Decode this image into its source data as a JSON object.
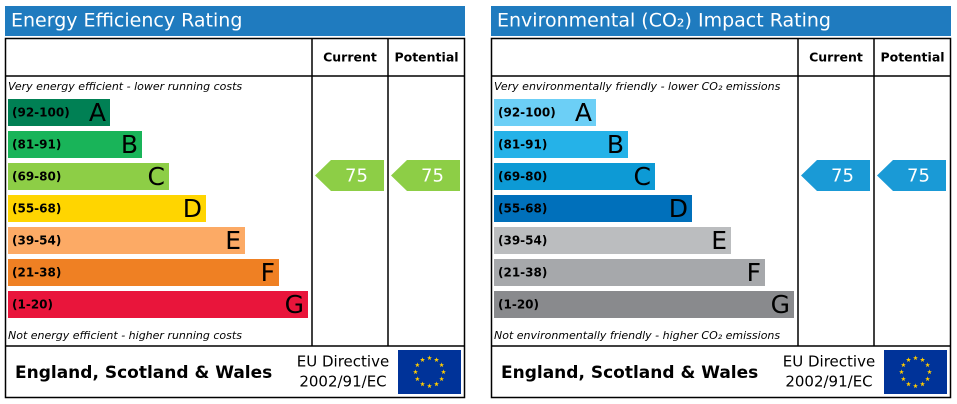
{
  "panels": [
    {
      "title": "Energy Efficiency Rating",
      "columns": [
        "Current",
        "Potential"
      ],
      "top_note": "Very energy efficient - lower running costs",
      "bottom_note": "Not energy efficient - higher running costs",
      "bands": [
        {
          "range": "(92-100)",
          "letter": "A",
          "color": "#008054"
        },
        {
          "range": "(81-91)",
          "letter": "B",
          "color": "#19b459"
        },
        {
          "range": "(69-80)",
          "letter": "C",
          "color": "#8dce46"
        },
        {
          "range": "(55-68)",
          "letter": "D",
          "color": "#ffd500"
        },
        {
          "range": "(39-54)",
          "letter": "E",
          "color": "#fcaa65"
        },
        {
          "range": "(21-38)",
          "letter": "F",
          "color": "#ef8023"
        },
        {
          "range": "(1-20)",
          "letter": "G",
          "color": "#e9153b"
        }
      ],
      "current": 75,
      "potential": 75,
      "arrow_color": "#8dce46",
      "footer": {
        "region": "England, Scotland & Wales",
        "directive": "EU Directive",
        "code": "2002/91/EC"
      }
    },
    {
      "title": "Environmental (CO₂) Impact Rating",
      "columns": [
        "Current",
        "Potential"
      ],
      "top_note": "Very environmentally friendly - lower CO₂ emissions",
      "bottom_note": "Not environmentally friendly - higher CO₂ emissions",
      "bands": [
        {
          "range": "(92-100)",
          "letter": "A",
          "color": "#6ccff6"
        },
        {
          "range": "(81-91)",
          "letter": "B",
          "color": "#25b2e8"
        },
        {
          "range": "(69-80)",
          "letter": "C",
          "color": "#0d9ad5"
        },
        {
          "range": "(55-68)",
          "letter": "D",
          "color": "#0070bb"
        },
        {
          "range": "(39-54)",
          "letter": "E",
          "color": "#bbbdbf"
        },
        {
          "range": "(21-38)",
          "letter": "F",
          "color": "#a6a8ab"
        },
        {
          "range": "(1-20)",
          "letter": "G",
          "color": "#898a8d"
        }
      ],
      "current": 75,
      "potential": 75,
      "arrow_color": "#1a9ad6",
      "footer": {
        "region": "England, Scotland & Wales",
        "directive": "EU Directive",
        "code": "2002/91/EC"
      }
    }
  ]
}
